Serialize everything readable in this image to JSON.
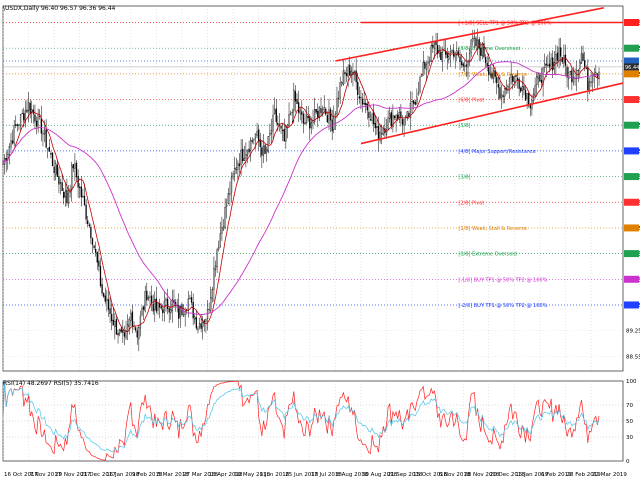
{
  "header": {
    "symbol_line": "\\USDX,Daily  96.40 96.57 96.36 96.44",
    "rsi_line": "RSI(14) 48.2697  RSI(5) 35.7416"
  },
  "chart_data": [
    {
      "type": "line",
      "name": "price",
      "ylim": [
        88.15,
        98.1
      ],
      "xlim": [
        0,
        388
      ],
      "grid": true,
      "x_tick_labels": [
        {
          "i": 0,
          "label": "16 Oct 2017"
        },
        {
          "i": 16,
          "label": "7 Nov 2017"
        },
        {
          "i": 32,
          "label": "29 Nov 2017"
        },
        {
          "i": 48,
          "label": "21 Dec 2017"
        },
        {
          "i": 64,
          "label": "16 Jan 2018"
        },
        {
          "i": 80,
          "label": "9 Feb 2018"
        },
        {
          "i": 96,
          "label": "5 Mar 2018"
        },
        {
          "i": 112,
          "label": "27 Mar 2018"
        },
        {
          "i": 128,
          "label": "18 Apr 2018"
        },
        {
          "i": 144,
          "label": "10 May 2018"
        },
        {
          "i": 160,
          "label": "1 Jun 2018"
        },
        {
          "i": 176,
          "label": "25 Jun 2018"
        },
        {
          "i": 192,
          "label": "17 Jul 2018"
        },
        {
          "i": 208,
          "label": "8 Aug 2018"
        },
        {
          "i": 224,
          "label": "30 Aug 2018"
        },
        {
          "i": 240,
          "label": "21 Sep 2018"
        },
        {
          "i": 256,
          "label": "15 Oct 2018"
        },
        {
          "i": 272,
          "label": "6 Nov 2018"
        },
        {
          "i": 288,
          "label": "28 Nov 2018"
        },
        {
          "i": 304,
          "label": "20 Dec 2018"
        },
        {
          "i": 320,
          "label": "15 Jan 2019"
        },
        {
          "i": 336,
          "label": "6 Feb 2019"
        },
        {
          "i": 352,
          "label": "28 Feb 2019"
        },
        {
          "i": 368,
          "label": "22 Mar 2019"
        }
      ],
      "y_ticks": [
        "97.65",
        "96.95",
        "96.25",
        "95.55",
        "94.85",
        "94.15",
        "93.45",
        "92.75",
        "92.05",
        "91.35",
        "90.65",
        "89.95",
        "89.25",
        "88.55"
      ],
      "close_anchors": [
        [
          0,
          93.8
        ],
        [
          8,
          94.8
        ],
        [
          16,
          95.4
        ],
        [
          24,
          94.8
        ],
        [
          32,
          93.7
        ],
        [
          40,
          92.8
        ],
        [
          44,
          93.8
        ],
        [
          48,
          93.1
        ],
        [
          56,
          91.8
        ],
        [
          62,
          90.3
        ],
        [
          70,
          89.4
        ],
        [
          76,
          88.9
        ],
        [
          80,
          89.7
        ],
        [
          84,
          89.2
        ],
        [
          90,
          90.3
        ],
        [
          96,
          89.8
        ],
        [
          100,
          89.9
        ],
        [
          106,
          90.0
        ],
        [
          110,
          89.7
        ],
        [
          116,
          90.1
        ],
        [
          122,
          89.4
        ],
        [
          128,
          89.7
        ],
        [
          134,
          91.5
        ],
        [
          140,
          92.7
        ],
        [
          146,
          93.8
        ],
        [
          152,
          94.2
        ],
        [
          158,
          94.6
        ],
        [
          164,
          94.0
        ],
        [
          170,
          95.1
        ],
        [
          176,
          94.4
        ],
        [
          182,
          95.6
        ],
        [
          188,
          94.9
        ],
        [
          194,
          95.0
        ],
        [
          200,
          95.4
        ],
        [
          206,
          94.9
        ],
        [
          212,
          96.1
        ],
        [
          218,
          96.4
        ],
        [
          224,
          95.6
        ],
        [
          230,
          95.2
        ],
        [
          234,
          94.6
        ],
        [
          240,
          94.9
        ],
        [
          246,
          95.2
        ],
        [
          252,
          94.9
        ],
        [
          258,
          95.6
        ],
        [
          264,
          96.5
        ],
        [
          270,
          97.0
        ],
        [
          276,
          96.7
        ],
        [
          282,
          96.9
        ],
        [
          288,
          96.4
        ],
        [
          294,
          97.1
        ],
        [
          300,
          96.9
        ],
        [
          306,
          96.2
        ],
        [
          312,
          95.7
        ],
        [
          318,
          96.2
        ],
        [
          324,
          96.0
        ],
        [
          330,
          95.5
        ],
        [
          336,
          96.2
        ],
        [
          342,
          96.4
        ],
        [
          348,
          96.9
        ],
        [
          354,
          96.2
        ],
        [
          358,
          96.3
        ],
        [
          362,
          96.8
        ],
        [
          366,
          96.0
        ],
        [
          370,
          96.4
        ],
        [
          373,
          96.3
        ]
      ],
      "ma_fast_color": "#c00000",
      "ma_slow_color": "#cc33cc",
      "candle_color": "#000000",
      "channel": {
        "color": "#ff2020",
        "upper_line": {
          "from": [
            208,
            96.6
          ],
          "to": [
            376,
            98.05
          ]
        },
        "lower_line": {
          "from": [
            224,
            94.35
          ],
          "to": [
            388,
            96.0
          ]
        },
        "horizontal_top": {
          "from": [
            224,
            97.65
          ],
          "to": [
            388,
            97.65
          ]
        }
      },
      "horizontal_levels": [
        {
          "value": 97.65,
          "label": "[+1/8] SELL TP1 @ 50% TP2 @ 100%",
          "color": "#ff2020",
          "style": "dotted"
        },
        {
          "value": 96.95,
          "label": "[8/8] Extreme Overshoot",
          "color": "#20a050",
          "style": "dotted"
        },
        {
          "value": 96.6,
          "label": "",
          "color": "#2060c0",
          "style": "dotted"
        },
        {
          "value": 96.25,
          "label": "[7/8] Weak, Stall & Reverse",
          "color": "#e08000",
          "style": "dotted"
        },
        {
          "value": 95.55,
          "label": "[6/8] Pivot",
          "color": "#ff3030",
          "style": "dotted"
        },
        {
          "value": 94.85,
          "label": "[5/8]",
          "color": "#20a050",
          "style": "dotted"
        },
        {
          "value": 94.15,
          "label": "[4/8] Major Support/Resistance",
          "color": "#2040ff",
          "style": "dotted"
        },
        {
          "value": 93.45,
          "label": "[3/8]",
          "color": "#20a050",
          "style": "dotted"
        },
        {
          "value": 92.75,
          "label": "[2/8] Pivot",
          "color": "#ff3030",
          "style": "dotted"
        },
        {
          "value": 92.05,
          "label": "[1/8] Weak, Stall & Reverse",
          "color": "#e08000",
          "style": "dotted"
        },
        {
          "value": 91.35,
          "label": "[0/8] Extreme Oversold",
          "color": "#20a050",
          "style": "dotted"
        },
        {
          "value": 90.65,
          "label": "[-1/8] BUY TP1 @ 50% TP2 @ 100%",
          "color": "#cc33cc",
          "style": "dotted"
        },
        {
          "value": 89.95,
          "label": "[-2/8] BUY TP1 @ 50% TP2 @ 100%",
          "color": "#2040ff",
          "style": "dotted"
        }
      ],
      "current_price": 96.44,
      "current_price_color": "#2b2b2b"
    },
    {
      "type": "line",
      "name": "rsi",
      "ylim": [
        0,
        100
      ],
      "y_ticks": [
        "100",
        "70",
        "50",
        "30",
        "0"
      ],
      "levels": [
        70,
        50,
        30
      ],
      "series": [
        {
          "color": "#ff2020"
        },
        {
          "color": "#4fc3e8"
        }
      ]
    }
  ]
}
